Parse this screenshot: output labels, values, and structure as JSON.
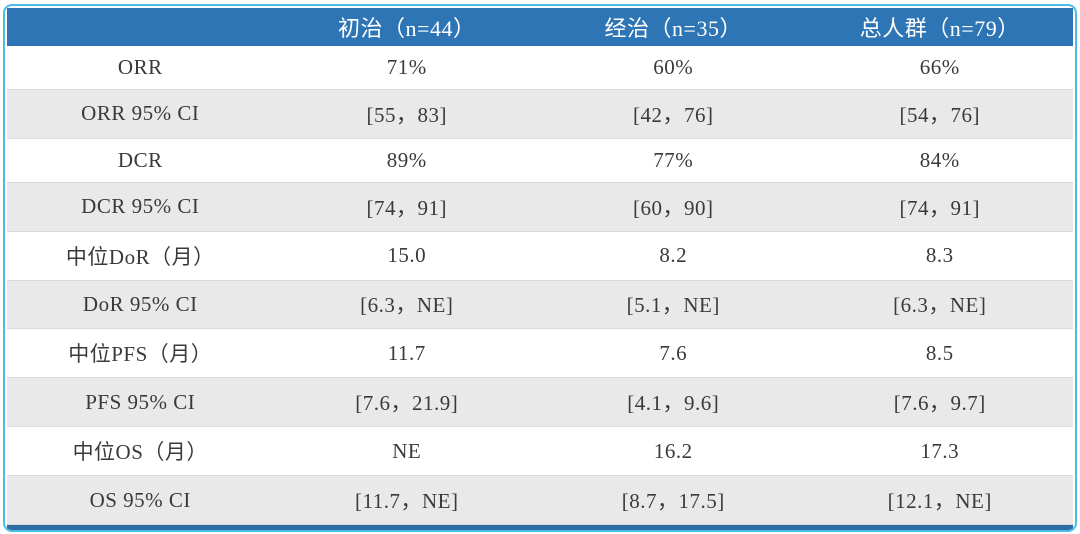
{
  "chart_data": {
    "type": "table",
    "title": "",
    "columns": [
      "",
      "初治（n=44）",
      "经治（n=35）",
      "总人群（n=79）"
    ],
    "rows": [
      [
        "ORR",
        "71%",
        "60%",
        "66%"
      ],
      [
        "ORR 95% CI",
        "[55，83]",
        "[42，76]",
        "[54，76]"
      ],
      [
        "DCR",
        "89%",
        "77%",
        "84%"
      ],
      [
        "DCR 95% CI",
        "[74，91]",
        "[60，90]",
        "[74，91]"
      ],
      [
        "中位DoR（月）",
        "15.0",
        "8.2",
        "8.3"
      ],
      [
        "DoR 95% CI",
        "[6.3，NE]",
        "[5.1，NE]",
        "[6.3，NE]"
      ],
      [
        "中位PFS（月）",
        "11.7",
        "7.6",
        "8.5"
      ],
      [
        "PFS 95% CI",
        "[7.6，21.9]",
        "[4.1，9.6]",
        "[7.6，9.7]"
      ],
      [
        "中位OS（月）",
        "NE",
        "16.2",
        "17.3"
      ],
      [
        "OS 95% CI",
        "[11.7，NE]",
        "[8.7，17.5]",
        "[12.1，NE]"
      ]
    ],
    "layout": {
      "alternating_rows": true,
      "header_position": "top",
      "column_alignment": "center"
    },
    "colors": {
      "header_bg": "#2e75b6",
      "header_text": "#ffffff",
      "alt_row_bg": "#e9e9e9",
      "row_bg": "#ffffff",
      "outer_border": "#4cbbe7",
      "bottom_bar": "#2d6ca2",
      "body_text": "#3a3a3a"
    }
  }
}
